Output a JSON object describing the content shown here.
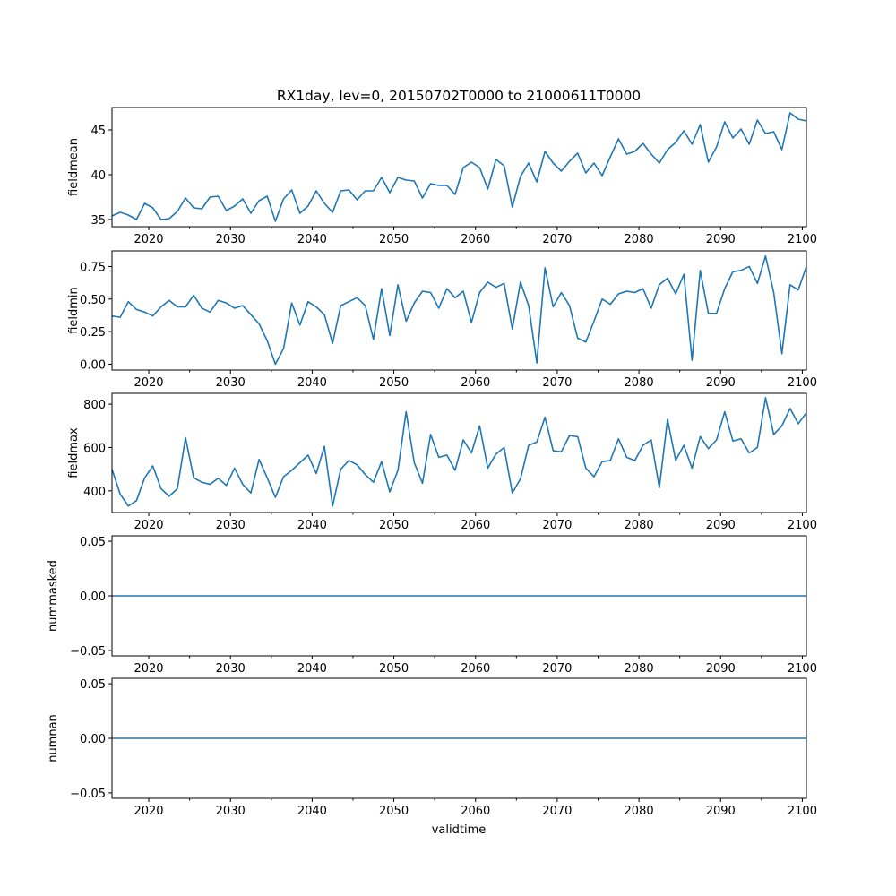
{
  "chart_data": {
    "type": "line",
    "title": "RX1day, lev=0, 20150702T0000 to 21000611T0000",
    "xlabel": "validtime",
    "xlim": [
      2015.5,
      2100.5
    ],
    "xticks": [
      2020,
      2030,
      2040,
      2050,
      2060,
      2070,
      2080,
      2090,
      2100
    ],
    "xtick_labels": [
      "2020",
      "2030",
      "2040",
      "2050",
      "2060",
      "2070",
      "2080",
      "2090",
      "2100"
    ],
    "line_color": "#1f77b4",
    "x": [
      2015.5,
      2016.5,
      2017.5,
      2018.5,
      2019.5,
      2020.5,
      2021.5,
      2022.5,
      2023.5,
      2024.5,
      2025.5,
      2026.5,
      2027.5,
      2028.5,
      2029.5,
      2030.5,
      2031.5,
      2032.5,
      2033.5,
      2034.5,
      2035.5,
      2036.5,
      2037.5,
      2038.5,
      2039.5,
      2040.5,
      2041.5,
      2042.5,
      2043.5,
      2044.5,
      2045.5,
      2046.5,
      2047.5,
      2048.5,
      2049.5,
      2050.5,
      2051.5,
      2052.5,
      2053.5,
      2054.5,
      2055.5,
      2056.5,
      2057.5,
      2058.5,
      2059.5,
      2060.5,
      2061.5,
      2062.5,
      2063.5,
      2064.5,
      2065.5,
      2066.5,
      2067.5,
      2068.5,
      2069.5,
      2070.5,
      2071.5,
      2072.5,
      2073.5,
      2074.5,
      2075.5,
      2076.5,
      2077.5,
      2078.5,
      2079.5,
      2080.5,
      2081.5,
      2082.5,
      2083.5,
      2084.5,
      2085.5,
      2086.5,
      2087.5,
      2088.5,
      2089.5,
      2090.5,
      2091.5,
      2092.5,
      2093.5,
      2094.5,
      2095.5,
      2096.5,
      2097.5,
      2098.5,
      2099.5,
      2100.5
    ],
    "panels": [
      {
        "ylabel": "fieldmean",
        "ylim": [
          34.2,
          47.5
        ],
        "yticks": [
          35,
          40,
          45
        ],
        "ytick_labels": [
          "35",
          "40",
          "45"
        ],
        "values": [
          35.4,
          35.8,
          35.5,
          35.0,
          36.8,
          36.3,
          35.0,
          35.1,
          35.9,
          37.4,
          36.3,
          36.2,
          37.5,
          37.6,
          36.0,
          36.5,
          37.3,
          35.7,
          37.1,
          37.6,
          34.8,
          37.3,
          38.3,
          35.7,
          36.5,
          38.2,
          36.8,
          35.8,
          38.2,
          38.3,
          37.2,
          38.2,
          38.2,
          39.7,
          38.0,
          39.7,
          39.4,
          39.3,
          37.4,
          39.0,
          38.8,
          38.8,
          37.8,
          40.8,
          41.4,
          40.8,
          38.4,
          41.7,
          41.0,
          36.4,
          39.8,
          41.3,
          39.2,
          42.6,
          41.3,
          40.4,
          41.5,
          42.4,
          40.2,
          41.3,
          39.9,
          42.0,
          44.0,
          42.3,
          42.6,
          43.5,
          42.3,
          41.3,
          42.8,
          43.6,
          44.9,
          43.4,
          45.6,
          41.4,
          43.1,
          45.9,
          44.1,
          45.1,
          43.4,
          46.1,
          44.6,
          44.8,
          42.8,
          46.9,
          46.2,
          46.0
        ]
      },
      {
        "ylabel": "fieldmin",
        "ylim": [
          -0.045,
          0.87
        ],
        "yticks": [
          0.0,
          0.25,
          0.5,
          0.75
        ],
        "ytick_labels": [
          "0.00",
          "0.25",
          "0.50",
          "0.75"
        ],
        "values": [
          0.37,
          0.36,
          0.48,
          0.42,
          0.4,
          0.37,
          0.44,
          0.49,
          0.44,
          0.44,
          0.53,
          0.43,
          0.4,
          0.49,
          0.47,
          0.43,
          0.45,
          0.38,
          0.31,
          0.18,
          0.0,
          0.12,
          0.47,
          0.3,
          0.48,
          0.44,
          0.38,
          0.16,
          0.45,
          0.48,
          0.51,
          0.45,
          0.19,
          0.58,
          0.22,
          0.61,
          0.33,
          0.47,
          0.56,
          0.55,
          0.43,
          0.58,
          0.51,
          0.56,
          0.32,
          0.55,
          0.63,
          0.59,
          0.62,
          0.27,
          0.63,
          0.45,
          0.01,
          0.74,
          0.44,
          0.55,
          0.45,
          0.2,
          0.17,
          0.33,
          0.5,
          0.46,
          0.54,
          0.56,
          0.55,
          0.58,
          0.43,
          0.61,
          0.66,
          0.54,
          0.69,
          0.03,
          0.72,
          0.39,
          0.39,
          0.58,
          0.71,
          0.72,
          0.75,
          0.62,
          0.83,
          0.55,
          0.08,
          0.61,
          0.57,
          0.75
        ]
      },
      {
        "ylabel": "fieldmax",
        "ylim": [
          300,
          850
        ],
        "yticks": [
          400,
          600,
          800
        ],
        "ytick_labels": [
          "400",
          "600",
          "800"
        ],
        "values": [
          500,
          385,
          330,
          355,
          460,
          515,
          410,
          375,
          410,
          645,
          460,
          440,
          430,
          458,
          425,
          505,
          430,
          390,
          545,
          460,
          370,
          465,
          495,
          530,
          565,
          480,
          605,
          330,
          500,
          540,
          520,
          475,
          440,
          535,
          395,
          495,
          765,
          530,
          435,
          660,
          555,
          565,
          495,
          635,
          575,
          700,
          505,
          570,
          600,
          390,
          455,
          610,
          625,
          740,
          585,
          580,
          655,
          650,
          505,
          465,
          535,
          540,
          640,
          555,
          540,
          610,
          635,
          415,
          730,
          540,
          610,
          505,
          650,
          595,
          635,
          765,
          630,
          640,
          575,
          600,
          830,
          660,
          700,
          780,
          710,
          760
        ]
      },
      {
        "ylabel": "nummasked",
        "ylim": [
          -0.055,
          0.055
        ],
        "yticks": [
          -0.05,
          0.0,
          0.05
        ],
        "ytick_labels": [
          "−0.05",
          "0.00",
          "0.05"
        ],
        "constant_value": 0
      },
      {
        "ylabel": "numnan",
        "ylim": [
          -0.055,
          0.055
        ],
        "yticks": [
          -0.05,
          0.0,
          0.05
        ],
        "ytick_labels": [
          "−0.05",
          "0.00",
          "0.05"
        ],
        "constant_value": 0
      }
    ]
  }
}
